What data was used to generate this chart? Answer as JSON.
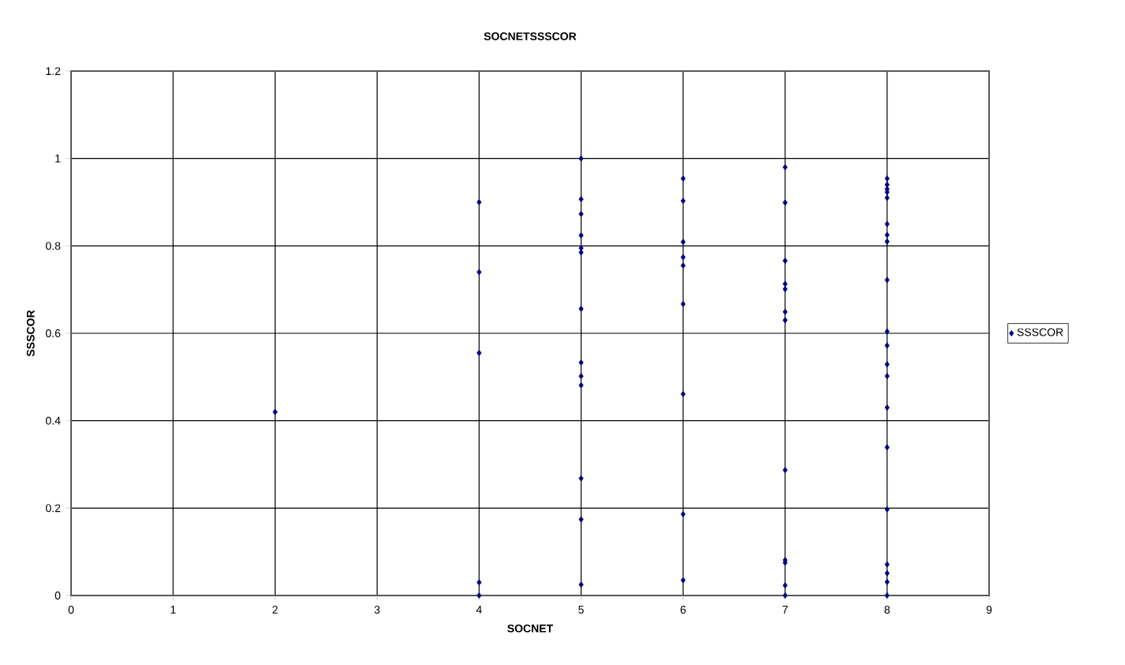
{
  "chart_data": {
    "type": "scatter",
    "title": "SOCNETSSSCOR",
    "xlabel": "SOCNET",
    "ylabel": "SSSCOR",
    "xlim": [
      0,
      9
    ],
    "xticks": [
      0,
      1,
      2,
      3,
      4,
      5,
      6,
      7,
      8,
      9
    ],
    "ylim": [
      0,
      1.2
    ],
    "yticks": [
      0,
      0.2,
      0.4,
      0.6,
      0.8,
      1,
      1.2
    ],
    "grid": true,
    "legend": "right",
    "marker": "diamond",
    "series": [
      {
        "name": "SSSCOR",
        "color": "#000080",
        "x": [
          2,
          4,
          4,
          4,
          4,
          4,
          5,
          5,
          5,
          5,
          5,
          5,
          5,
          5,
          5,
          5,
          5,
          5,
          5,
          6,
          6,
          6,
          6,
          6,
          6,
          6,
          6,
          6,
          7,
          7,
          7,
          7,
          7,
          7,
          7,
          7,
          7,
          7,
          7,
          7,
          8,
          8,
          8,
          8,
          8,
          8,
          8,
          8,
          8,
          8,
          8,
          8,
          8,
          8,
          8,
          8,
          8,
          8,
          8,
          8
        ],
        "values": [
          0.42,
          0.9,
          0.74,
          0.555,
          0.03,
          0.0,
          1.0,
          0.907,
          0.873,
          0.824,
          0.795,
          0.785,
          0.656,
          0.533,
          0.502,
          0.481,
          0.268,
          0.174,
          0.025,
          0.954,
          0.903,
          0.809,
          0.774,
          0.755,
          0.667,
          0.461,
          0.186,
          0.035,
          0.98,
          0.899,
          0.766,
          0.713,
          0.701,
          0.649,
          0.63,
          0.287,
          0.081,
          0.075,
          0.023,
          0.0,
          0.954,
          0.94,
          0.93,
          0.923,
          0.91,
          0.85,
          0.825,
          0.81,
          0.722,
          0.604,
          0.572,
          0.529,
          0.502,
          0.43,
          0.339,
          0.197,
          0.071,
          0.051,
          0.031,
          0.0
        ]
      }
    ]
  }
}
